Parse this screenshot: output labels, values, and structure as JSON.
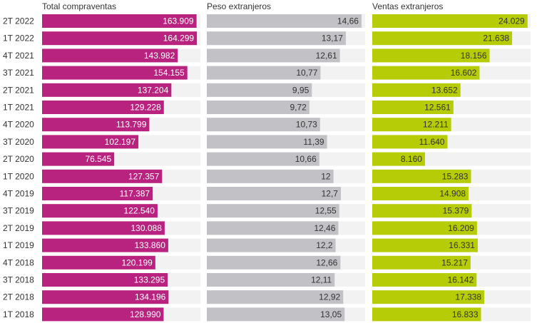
{
  "chart_data": {
    "type": "bar",
    "orientation": "horizontal",
    "categories": [
      "2T 2022",
      "1T 2022",
      "4T 2021",
      "3T 2021",
      "2T 2021",
      "1T 2021",
      "4T 2020",
      "3T 2020",
      "2T 2020",
      "1T 2020",
      "4T 2019",
      "3T 2019",
      "2T 2019",
      "1T 2019",
      "4T 2018",
      "3T 2018",
      "2T 2018",
      "1T 2018"
    ],
    "panels": [
      {
        "name": "Total compraventas",
        "color": "#b8237f",
        "label_color": "#ffffff",
        "xlim": [
          0,
          168000
        ],
        "values": [
          163909,
          164299,
          143982,
          154155,
          137204,
          129228,
          113799,
          102197,
          76545,
          127357,
          117387,
          122540,
          130088,
          133860,
          120199,
          133295,
          134196,
          128990
        ],
        "labels": [
          "163.909",
          "164.299",
          "143.982",
          "154.155",
          "137.204",
          "129.228",
          "113.799",
          "102.197",
          "76.545",
          "127.357",
          "117.387",
          "122.540",
          "130.088",
          "133.860",
          "120.199",
          "133.295",
          "134.196",
          "128.990"
        ]
      },
      {
        "name": "Peso extranjeros",
        "color": "#c2c2c6",
        "label_color": "#333333",
        "xlim": [
          0,
          15.0
        ],
        "values": [
          14.66,
          13.17,
          12.61,
          10.77,
          9.95,
          9.72,
          10.73,
          11.39,
          10.66,
          12,
          12.7,
          12.55,
          12.46,
          12.2,
          12.66,
          12.11,
          12.92,
          13.05
        ],
        "labels": [
          "14,66",
          "13,17",
          "12,61",
          "10,77",
          "9,95",
          "9,72",
          "10,73",
          "11,39",
          "10,66",
          "12",
          "12,7",
          "12,55",
          "12,46",
          "12,2",
          "12,66",
          "12,11",
          "12,92",
          "13,05"
        ]
      },
      {
        "name": "Ventas extranjeros",
        "color": "#b5cc06",
        "label_color": "#333333",
        "xlim": [
          0,
          24500
        ],
        "values": [
          24029,
          21638,
          18156,
          16602,
          13652,
          12561,
          12211,
          11640,
          8160,
          15283,
          14908,
          15379,
          16209,
          16331,
          15217,
          16142,
          17338,
          16833
        ],
        "labels": [
          "24.029",
          "21.638",
          "18.156",
          "16.602",
          "13.652",
          "12.561",
          "12.211",
          "11.640",
          "8.160",
          "15.283",
          "14.908",
          "15.379",
          "16.209",
          "16.331",
          "15.217",
          "16.142",
          "17.338",
          "16.833"
        ]
      }
    ],
    "track_color": "#f2f2f2",
    "grid": false,
    "legend": "none"
  }
}
